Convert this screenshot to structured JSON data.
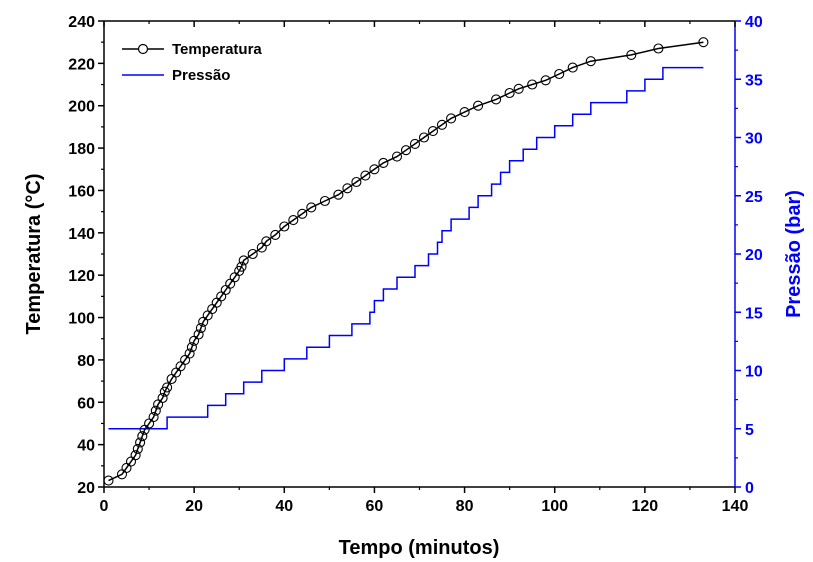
{
  "chart_data": {
    "type": "line",
    "xlabel": "Tempo (minutos)",
    "ylabel": "Temperatura (°C)",
    "y2label": "Pressão (bar)",
    "xlim": [
      0,
      140
    ],
    "ylim": [
      20,
      240
    ],
    "y2lim": [
      0,
      40
    ],
    "xticks": [
      "0",
      "20",
      "40",
      "60",
      "80",
      "100",
      "120",
      "140"
    ],
    "yticks": [
      "20",
      "40",
      "60",
      "80",
      "100",
      "120",
      "140",
      "160",
      "180",
      "200",
      "220",
      "240"
    ],
    "y2ticks": [
      "0",
      "5",
      "10",
      "15",
      "20",
      "25",
      "30",
      "35",
      "40"
    ],
    "legend_position": "top-left",
    "grid": false,
    "colors": {
      "temperature": "#000000",
      "pressure": "#0000ff",
      "right_axis": "#0000ff"
    },
    "series": [
      {
        "name": "Temperatura",
        "axis": "left",
        "marker": "circle",
        "x": [
          1,
          4,
          5,
          6,
          7,
          7.5,
          8,
          8.5,
          9,
          10,
          11,
          11.5,
          12,
          13,
          13.5,
          14,
          15,
          16,
          17,
          18,
          19,
          19.5,
          20,
          21,
          21.5,
          22,
          23,
          24,
          25,
          26,
          27,
          28,
          29,
          30,
          30.5,
          31,
          33,
          35,
          36,
          38,
          40,
          42,
          44,
          46,
          49,
          52,
          54,
          56,
          58,
          60,
          62,
          65,
          67,
          69,
          71,
          73,
          75,
          77,
          80,
          83,
          87,
          90,
          92,
          95,
          98,
          101,
          104,
          108,
          117,
          123,
          133
        ],
        "y": [
          23,
          26,
          29,
          32,
          35,
          38,
          41,
          44,
          47,
          50,
          53,
          56,
          59,
          62,
          65,
          67,
          71,
          74,
          77,
          80,
          83,
          86,
          89,
          92,
          95,
          98,
          101,
          104,
          107,
          110,
          113,
          116,
          119,
          122,
          124,
          127,
          130,
          133,
          136,
          139,
          143,
          146,
          149,
          152,
          155,
          158,
          161,
          164,
          167,
          170,
          173,
          176,
          179,
          182,
          185,
          188,
          191,
          194,
          197,
          200,
          203,
          206,
          208,
          210,
          212,
          215,
          218,
          221,
          224,
          227,
          230
        ]
      },
      {
        "name": "Pressão",
        "axis": "right",
        "marker": "none",
        "step": [
          [
            1,
            5
          ],
          [
            14,
            5
          ],
          [
            14,
            6
          ],
          [
            23,
            6
          ],
          [
            23,
            7
          ],
          [
            27,
            7
          ],
          [
            27,
            8
          ],
          [
            31,
            8
          ],
          [
            31,
            9
          ],
          [
            35,
            9
          ],
          [
            35,
            10
          ],
          [
            40,
            10
          ],
          [
            40,
            11
          ],
          [
            45,
            11
          ],
          [
            45,
            12
          ],
          [
            50,
            12
          ],
          [
            50,
            13
          ],
          [
            55,
            13
          ],
          [
            55,
            14
          ],
          [
            59,
            14
          ],
          [
            59,
            15
          ],
          [
            60,
            15
          ],
          [
            60,
            16
          ],
          [
            62,
            16
          ],
          [
            62,
            17
          ],
          [
            65,
            17
          ],
          [
            65,
            18
          ],
          [
            69,
            18
          ],
          [
            69,
            19
          ],
          [
            72,
            19
          ],
          [
            72,
            20
          ],
          [
            74,
            20
          ],
          [
            74,
            21
          ],
          [
            75,
            21
          ],
          [
            75,
            22
          ],
          [
            77,
            22
          ],
          [
            77,
            23
          ],
          [
            81,
            23
          ],
          [
            81,
            24
          ],
          [
            83,
            24
          ],
          [
            83,
            25
          ],
          [
            86,
            25
          ],
          [
            86,
            26
          ],
          [
            88,
            26
          ],
          [
            88,
            27
          ],
          [
            90,
            27
          ],
          [
            90,
            28
          ],
          [
            93,
            28
          ],
          [
            93,
            29
          ],
          [
            96,
            29
          ],
          [
            96,
            30
          ],
          [
            100,
            30
          ],
          [
            100,
            31
          ],
          [
            104,
            31
          ],
          [
            104,
            32
          ],
          [
            108,
            32
          ],
          [
            108,
            33
          ],
          [
            116,
            33
          ],
          [
            116,
            34
          ],
          [
            120,
            34
          ],
          [
            120,
            35
          ],
          [
            124,
            35
          ],
          [
            124,
            36
          ],
          [
            133,
            36
          ]
        ]
      }
    ]
  }
}
